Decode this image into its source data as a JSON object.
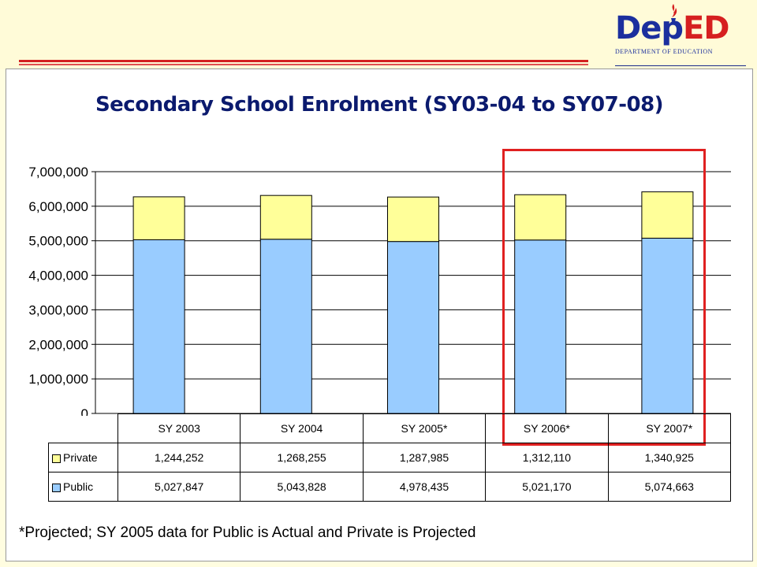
{
  "logo": {
    "text_dep": "Dep",
    "text_ed": "ED",
    "subtitle": "DEPARTMENT OF EDUCATION"
  },
  "colors": {
    "public": "#99ccff",
    "private": "#ffff99",
    "highlight": "#e02020",
    "title": "#0b1a6e"
  },
  "chart_data": {
    "type": "bar",
    "stacked": true,
    "title": "Secondary School Enrolment (SY03-04 to SY07-08)",
    "categories": [
      "SY 2003",
      "SY 2004",
      "SY 2005*",
      "SY 2006*",
      "SY 2007*"
    ],
    "series": [
      {
        "name": "Public",
        "values": [
          5027847,
          5043828,
          4978435,
          5021170,
          5074663
        ],
        "labels": [
          "5,027,847",
          "5,043,828",
          "4,978,435",
          "5,021,170",
          "5,074,663"
        ]
      },
      {
        "name": "Private",
        "values": [
          1244252,
          1268255,
          1287985,
          1312110,
          1340925
        ],
        "labels": [
          "1,244,252",
          "1,268,255",
          "1,287,985",
          "1,312,110",
          "1,340,925"
        ]
      }
    ],
    "yticks": [
      "0",
      "1,000,000",
      "2,000,000",
      "3,000,000",
      "4,000,000",
      "5,000,000",
      "6,000,000",
      "7,000,000"
    ],
    "ylim": [
      0,
      7000000
    ],
    "grid": true,
    "legend": "data-table"
  },
  "footnote": "*Projected; SY 2005 data for Public is Actual and Private is Projected"
}
